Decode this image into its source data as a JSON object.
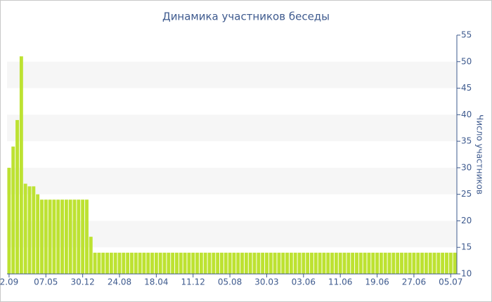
{
  "chart_data": {
    "type": "bar",
    "title": "Динамика участников беседы",
    "y_label": "Число участников",
    "categories": [
      "2.09",
      null,
      null,
      null,
      null,
      null,
      null,
      null,
      null,
      "07.05",
      null,
      null,
      null,
      null,
      null,
      null,
      null,
      null,
      "30.12",
      null,
      null,
      null,
      null,
      null,
      null,
      null,
      null,
      "24.08",
      null,
      null,
      null,
      null,
      null,
      null,
      null,
      null,
      "18.04",
      null,
      null,
      null,
      null,
      null,
      null,
      null,
      null,
      "11.12",
      null,
      null,
      null,
      null,
      null,
      null,
      null,
      null,
      "05.08",
      null,
      null,
      null,
      null,
      null,
      null,
      null,
      null,
      "30.03",
      null,
      null,
      null,
      null,
      null,
      null,
      null,
      null,
      "03.06",
      null,
      null,
      null,
      null,
      null,
      null,
      null,
      null,
      "11.06",
      null,
      null,
      null,
      null,
      null,
      null,
      null,
      null,
      "19.06",
      null,
      null,
      null,
      null,
      null,
      null,
      null,
      null,
      "27.06",
      null,
      null,
      null,
      null,
      null,
      null,
      null,
      null,
      "05.07",
      null
    ],
    "values": [
      30,
      34,
      39,
      51,
      27,
      26.5,
      26.5,
      25,
      24,
      24,
      24,
      24,
      24,
      24,
      24,
      24,
      24,
      24,
      24,
      24,
      17,
      14,
      14,
      14,
      14,
      14,
      14,
      14,
      14,
      14,
      14,
      14,
      14,
      14,
      14,
      14,
      14,
      14,
      14,
      14,
      14,
      14,
      14,
      14,
      14,
      14,
      14,
      14,
      14,
      14,
      14,
      14,
      14,
      14,
      14,
      14,
      14,
      14,
      14,
      14,
      14,
      14,
      14,
      14,
      14,
      14,
      14,
      14,
      14,
      14,
      14,
      14,
      14,
      14,
      14,
      14,
      14,
      14,
      14,
      14,
      14,
      14,
      14,
      14,
      14,
      14,
      14,
      14,
      14,
      14,
      14,
      14,
      14,
      14,
      14,
      14,
      14,
      14,
      14,
      14,
      14,
      14,
      14,
      14,
      14,
      14,
      14,
      14,
      14,
      14
    ],
    "color": "#bde232",
    "ylim": [
      10,
      55
    ],
    "yticks": [
      10,
      15,
      20,
      25,
      30,
      35,
      40,
      45,
      50,
      55
    ],
    "grid": true
  }
}
